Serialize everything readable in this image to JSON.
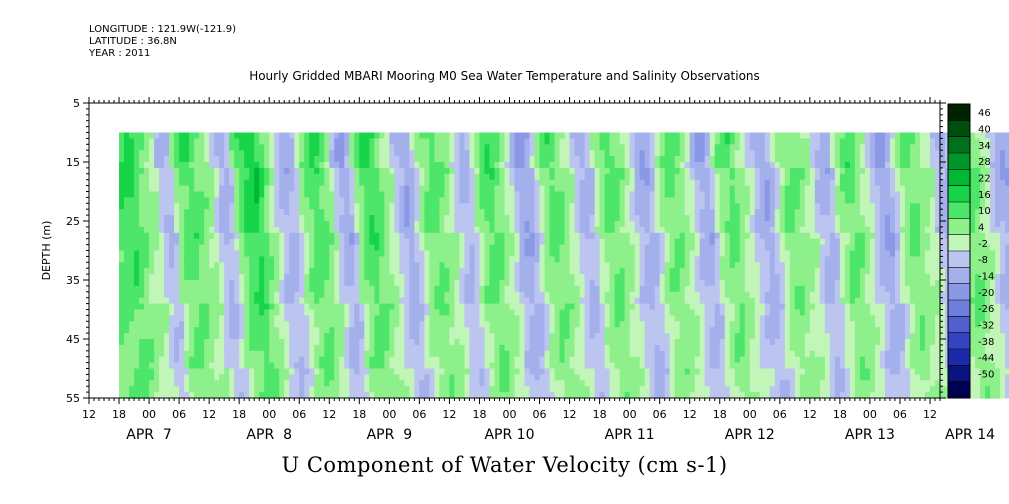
{
  "header": {
    "longitude": "LONGITUDE : 121.9W(-121.9)",
    "latitude": "LATITUDE : 36.8N",
    "year": "YEAR : 2011"
  },
  "chart_data": {
    "type": "heatmap",
    "title": "Hourly Gridded MBARI Mooring M0 Sea Water Temperature and Salinity Observations",
    "variable_label": "U Component of Water Velocity (cm s-1)",
    "ylabel": "DEPTH (m)",
    "y_axis": {
      "reversed": true,
      "range": [
        5,
        55
      ],
      "ticks": [
        5,
        15,
        25,
        35,
        45,
        55
      ]
    },
    "x_axis": {
      "range_hours": [
        -12,
        158
      ],
      "hour_ticks": [
        "12",
        "18",
        "00",
        "06",
        "12",
        "18",
        "00",
        "06",
        "12",
        "18",
        "00",
        "06",
        "12",
        "18",
        "00",
        "06",
        "12",
        "18",
        "00",
        "06",
        "12",
        "18",
        "00",
        "06",
        "12",
        "18",
        "00",
        "06",
        "12"
      ],
      "date_labels": [
        "APR  7",
        "APR  8",
        "APR  9",
        "APR 10",
        "APR 11",
        "APR 12",
        "APR 13",
        "APR 14"
      ]
    },
    "data_extent": {
      "start": "APR 6 18:00",
      "end": "APR 14 14:00",
      "depth_top_m": 10,
      "depth_bottom_m": 55
    },
    "colorbar": {
      "levels": [
        46,
        40,
        34,
        28,
        22,
        16,
        10,
        4,
        -2,
        -8,
        -14,
        -20,
        -26,
        -32,
        -38,
        -44,
        -50
      ],
      "colors": [
        "#002200",
        "#004d10",
        "#00701c",
        "#00962a",
        "#00b834",
        "#18d448",
        "#4ee66a",
        "#8ef08a",
        "#c2f5b8",
        "#bcc4f0",
        "#a4b0ec",
        "#8a98e6",
        "#6e7edc",
        "#5060d0",
        "#3244c2",
        "#1a2aa8",
        "#0a1480",
        "#000050"
      ]
    },
    "u_by_day_hour": [
      {
        "date": "APR 6",
        "hours": {
          "18": 16,
          "19": 18,
          "20": 15,
          "21": 12,
          "22": 8,
          "23": 6
        }
      },
      {
        "date": "APR 7",
        "hours": {
          "00": 4,
          "01": -6,
          "02": -10,
          "03": -8,
          "04": 6,
          "05": 12,
          "06": 14,
          "07": 16,
          "08": 12,
          "09": 10,
          "10": 8,
          "11": 6,
          "12": -4,
          "13": -10,
          "14": -12,
          "15": -6,
          "16": 8,
          "17": 14,
          "18": 18,
          "19": 20,
          "20": 22,
          "21": 16,
          "22": 10,
          "23": 6
        }
      },
      {
        "date": "APR 8",
        "hours": {
          "00": -2,
          "01": -8,
          "02": -12,
          "03": -10,
          "04": -6,
          "05": 4,
          "06": 10,
          "07": 14,
          "08": 16,
          "09": 14,
          "10": 10,
          "11": 6,
          "12": -6,
          "13": -12,
          "14": -14,
          "15": -8,
          "16": 6,
          "17": 12,
          "18": 16,
          "19": 18,
          "20": 14,
          "21": 10,
          "22": 6,
          "23": 2
        }
      },
      {
        "date": "APR 9",
        "hours": {
          "00": -6,
          "01": -10,
          "02": -14,
          "03": -12,
          "04": -4,
          "05": 6,
          "06": 10,
          "07": 12,
          "08": 14,
          "09": 10,
          "10": 8,
          "11": 4,
          "12": -4,
          "13": -8,
          "14": -10,
          "15": -6,
          "16": 4,
          "17": 10,
          "18": 14,
          "19": 16,
          "20": 12,
          "21": 8,
          "22": 4,
          "23": 0
        }
      },
      {
        "date": "APR 10",
        "hours": {
          "00": -10,
          "01": -14,
          "02": -16,
          "03": -12,
          "04": -4,
          "05": 6,
          "06": 10,
          "07": 14,
          "08": 12,
          "09": 10,
          "10": 6,
          "11": 2,
          "12": -6,
          "13": -10,
          "14": -12,
          "15": -8,
          "16": 2,
          "17": 8,
          "18": 12,
          "19": 14,
          "20": 12,
          "21": 8,
          "22": 4,
          "23": 0
        }
      },
      {
        "date": "APR 11",
        "hours": {
          "00": -8,
          "01": -12,
          "02": -14,
          "03": -10,
          "04": -2,
          "05": 6,
          "06": 10,
          "07": 12,
          "08": 10,
          "09": 8,
          "10": 4,
          "11": 0,
          "12": -8,
          "13": -12,
          "14": -14,
          "15": -8,
          "16": 2,
          "17": 8,
          "18": 12,
          "19": 14,
          "20": 10,
          "21": 6,
          "22": 2,
          "23": -2
        }
      },
      {
        "date": "APR 12",
        "hours": {
          "00": -8,
          "01": -12,
          "02": -14,
          "03": -10,
          "04": -2,
          "05": 6,
          "06": 10,
          "07": 12,
          "08": 10,
          "09": 8,
          "10": 4,
          "11": 2,
          "12": -6,
          "13": -10,
          "14": -12,
          "15": -8,
          "16": 2,
          "17": 8,
          "18": 12,
          "19": 14,
          "20": 10,
          "21": 6,
          "22": 2,
          "23": -4
        }
      },
      {
        "date": "APR 13",
        "hours": {
          "00": -10,
          "01": -14,
          "02": -16,
          "03": -10,
          "04": -2,
          "05": 6,
          "06": 10,
          "07": 12,
          "08": 10,
          "09": 8,
          "10": 4,
          "11": 2,
          "12": -6,
          "13": -10,
          "14": -12,
          "15": -8,
          "16": 2,
          "17": 8,
          "18": 12,
          "19": 14,
          "20": 10,
          "21": 6,
          "22": 2,
          "23": -4
        }
      },
      {
        "date": "APR 14",
        "hours": {
          "00": -10,
          "01": -12,
          "02": -14,
          "03": -8,
          "04": 2,
          "05": 8,
          "06": 10,
          "07": 12,
          "08": 10,
          "09": 6,
          "10": 2,
          "11": -2,
          "12": -8,
          "13": -10,
          "14": -12
        }
      }
    ]
  }
}
